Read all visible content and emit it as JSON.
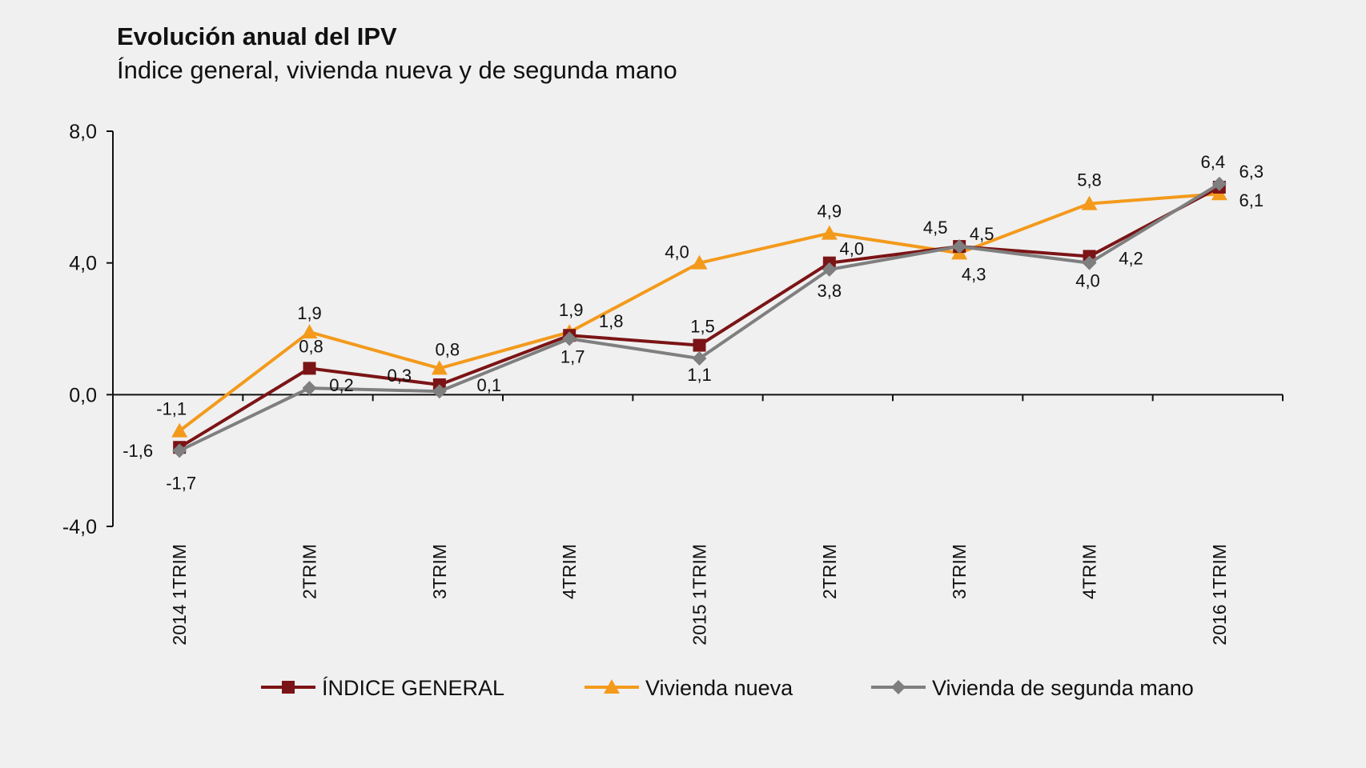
{
  "chart_data": {
    "type": "line",
    "title": "Evolución anual del IPV",
    "subtitle": "Índice general, vivienda nueva y de segunda mano",
    "categories": [
      "2014 1TRIM",
      "2TRIM",
      "3TRIM",
      "4TRIM",
      "2015 1TRIM",
      "2TRIM",
      "3TRIM",
      "4TRIM",
      "2016 1TRIM"
    ],
    "ylim": [
      -4,
      8
    ],
    "yticks": [
      8,
      4,
      0,
      -4
    ],
    "ytick_labels": [
      "8,0",
      "4,0",
      "0,0",
      "-4,0"
    ],
    "grid": false,
    "legend_position": "bottom",
    "series": [
      {
        "name": "ÍNDICE GENERAL",
        "color": "#7b1416",
        "marker": "square",
        "values": [
          -1.6,
          0.8,
          0.3,
          1.8,
          1.5,
          4.0,
          4.5,
          4.2,
          6.3
        ],
        "labels": [
          "-1,6",
          "0,8",
          "0,3",
          "1,8",
          "1,5",
          "4,0",
          "4,5",
          "4,2",
          "6,3"
        ]
      },
      {
        "name": "Vivienda nueva",
        "color": "#f39a1c",
        "marker": "triangle",
        "values": [
          -1.1,
          1.9,
          0.8,
          1.9,
          4.0,
          4.9,
          4.3,
          5.8,
          6.1
        ],
        "labels": [
          "-1,1",
          "1,9",
          "0,8",
          "1,9",
          "4,0",
          "4,9",
          "4,3",
          "5,8",
          "6,1"
        ]
      },
      {
        "name": "Vivienda de segunda mano",
        "color": "#7f7f7f",
        "marker": "diamond",
        "values": [
          -1.7,
          0.2,
          0.1,
          1.7,
          1.1,
          3.8,
          4.5,
          4.0,
          6.4
        ],
        "labels": [
          "-1,7",
          "0,2",
          "0,1",
          "1,7",
          "1,1",
          "3,8",
          "4,5",
          "4,0",
          "6,4"
        ]
      }
    ]
  }
}
